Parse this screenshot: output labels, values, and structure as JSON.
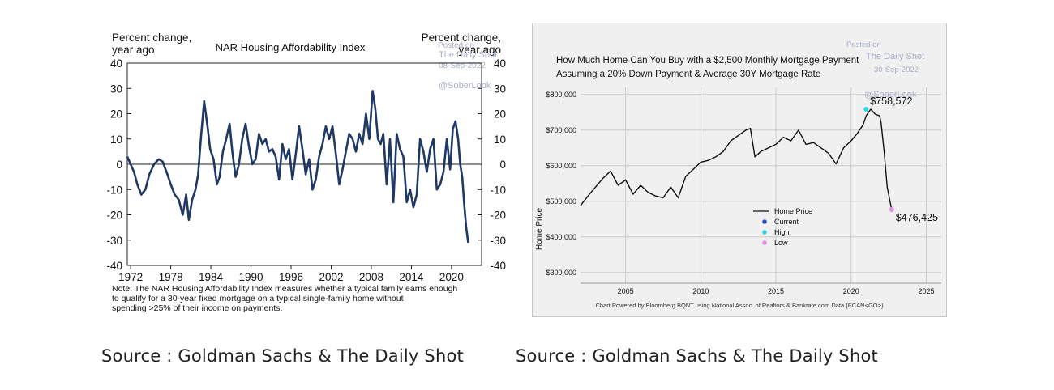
{
  "sources": [
    "Source : Goldman Sachs & The Daily Shot",
    "Source : Goldman Sachs & The Daily Shot"
  ],
  "colors": {
    "series1": "#1f3864",
    "series2": "#111111",
    "panel2_bg": "#f0f0f0",
    "current": "#2a50c8",
    "high": "#2fd4e6",
    "low": "#e290e8",
    "watermark": "#a8aec8"
  },
  "chart_data": [
    {
      "type": "line",
      "title": "NAR Housing Affordability Index",
      "ylabel_left": [
        "Percent change,",
        "year ago"
      ],
      "ylabel_right": [
        "Percent change,",
        "year ago"
      ],
      "watermark": [
        "Posted on",
        "The Daily Shot",
        "08-Sep-2022",
        "@SoberLook"
      ],
      "x_ticks": [
        1972,
        1978,
        1984,
        1990,
        1996,
        2002,
        2008,
        2014,
        2020
      ],
      "xlim": [
        1971.5,
        2024.5
      ],
      "y_ticks": [
        40,
        30,
        20,
        10,
        0,
        -10,
        -20,
        -30,
        -40
      ],
      "ylim": [
        -40,
        40
      ],
      "note": [
        "Note: The NAR Housing Affordability Index measures whether a typical family earns enough",
        "to qualify for a 30-year fixed mortgage on a typical single-family home without",
        "spending >25% of their income on payments."
      ],
      "series": [
        {
          "name": "NAR Housing Affordability Index",
          "x": [
            1971.5,
            1972,
            1972.5,
            1973,
            1973.6,
            1974.2,
            1974.8,
            1975.5,
            1976.2,
            1976.8,
            1977.5,
            1978,
            1978.6,
            1979.2,
            1979.8,
            1980.3,
            1980.7,
            1981.2,
            1981.7,
            1982.1,
            1982.5,
            1983,
            1983.5,
            1983.9,
            1984.4,
            1984.9,
            1985.3,
            1985.8,
            1986.3,
            1986.8,
            1987.2,
            1987.7,
            1988.2,
            1988.7,
            1989.2,
            1989.7,
            1990.2,
            1990.7,
            1991.2,
            1991.7,
            1992.2,
            1992.7,
            1993.2,
            1993.7,
            1994.2,
            1994.7,
            1995.2,
            1995.7,
            1996.2,
            1996.7,
            1997.2,
            1997.7,
            1998.2,
            1998.7,
            1999.2,
            1999.7,
            2000.2,
            2000.7,
            2001.2,
            2001.7,
            2002.2,
            2002.7,
            2003.2,
            2003.7,
            2004.2,
            2004.7,
            2005.2,
            2005.7,
            2006.2,
            2006.7,
            2007.2,
            2007.7,
            2008.2,
            2008.6,
            2009,
            2009.4,
            2009.8,
            2010.3,
            2010.8,
            2011.3,
            2011.8,
            2012.3,
            2012.8,
            2013.3,
            2013.8,
            2014.3,
            2014.8,
            2015.3,
            2015.8,
            2016.3,
            2016.8,
            2017.3,
            2017.8,
            2018.3,
            2018.8,
            2019.3,
            2019.8,
            2020.2,
            2020.6,
            2021,
            2021.3,
            2021.6,
            2021.9,
            2022.2,
            2022.5
          ],
          "y": [
            3,
            0,
            -3,
            -8,
            -12,
            -10,
            -4,
            0,
            2,
            1,
            -4,
            -8,
            -12,
            -14,
            -20,
            -12,
            -22,
            -14,
            -10,
            -4,
            10,
            25,
            15,
            6,
            2,
            -8,
            -5,
            5,
            10,
            16,
            5,
            -5,
            0,
            10,
            16,
            7,
            0,
            2,
            12,
            8,
            10,
            5,
            6,
            3,
            -6,
            8,
            2,
            6,
            -6,
            4,
            15,
            6,
            -4,
            2,
            -10,
            -6,
            3,
            8,
            15,
            10,
            15,
            4,
            -8,
            -2,
            5,
            12,
            10,
            5,
            12,
            8,
            20,
            10,
            29,
            22,
            10,
            8,
            12,
            -8,
            10,
            -15,
            12,
            6,
            3,
            -15,
            -10,
            -17,
            -12,
            10,
            5,
            -3,
            6,
            10,
            -10,
            -8,
            -3,
            10,
            -2,
            14,
            17,
            10,
            0,
            -5,
            -16,
            -25,
            -31
          ]
        }
      ]
    },
    {
      "type": "line",
      "title": [
        "How Much Home Can You Buy with a $2,500 Monthly Mortgage Payment",
        "Assuming a 20% Down Payment & Average 30Y Mortgage Rate"
      ],
      "ylabel": "Home Price",
      "watermark": [
        "Posted on",
        "The Daily Shot",
        "30-Sep-2022",
        "@SoberLook"
      ],
      "x_ticks": [
        2005,
        2010,
        2015,
        2020,
        2025
      ],
      "xlim": [
        2002,
        2026
      ],
      "y_ticks": [
        800000,
        700000,
        600000,
        500000,
        400000,
        300000
      ],
      "y_tick_labels": [
        "$800,000",
        "$700,000",
        "$600,000",
        "$500,000",
        "$400,000",
        "$300,000"
      ],
      "ylim": [
        270000,
        820000
      ],
      "legend": [
        "Home Price",
        "Current",
        "High",
        "Low"
      ],
      "legend_position": "center-left",
      "annotations": [
        {
          "label": "$758,572",
          "x": 2021.0,
          "y": 758572,
          "marker": "high"
        },
        {
          "label": "$476,425",
          "x": 2022.7,
          "y": 476425,
          "marker": "low"
        }
      ],
      "footer": "Chart Powered by Bloomberg BQNT using National Assoc. of Realtors & Bankrate.com Data   {ECAN<GO>}",
      "series": [
        {
          "name": "Home Price",
          "x": [
            2002,
            2002.5,
            2003,
            2003.5,
            2004,
            2004.5,
            2005,
            2005.5,
            2006,
            2006.5,
            2007,
            2007.5,
            2008,
            2008.5,
            2009,
            2009.5,
            2010,
            2010.5,
            2011,
            2011.5,
            2012,
            2012.5,
            2013,
            2013.3,
            2013.6,
            2014,
            2014.5,
            2015,
            2015.5,
            2016,
            2016.5,
            2017,
            2017.5,
            2018,
            2018.5,
            2019,
            2019.5,
            2020,
            2020.4,
            2020.8,
            2021,
            2021.3,
            2021.6,
            2021.9,
            2022,
            2022.2,
            2022.4,
            2022.7
          ],
          "y": [
            488000,
            515000,
            540000,
            565000,
            585000,
            545000,
            560000,
            520000,
            545000,
            525000,
            515000,
            510000,
            540000,
            510000,
            570000,
            590000,
            610000,
            615000,
            625000,
            640000,
            670000,
            685000,
            700000,
            705000,
            625000,
            640000,
            650000,
            660000,
            680000,
            670000,
            700000,
            660000,
            665000,
            650000,
            635000,
            605000,
            650000,
            670000,
            690000,
            715000,
            740000,
            758572,
            745000,
            740000,
            720000,
            640000,
            540000,
            476425
          ]
        }
      ]
    }
  ]
}
